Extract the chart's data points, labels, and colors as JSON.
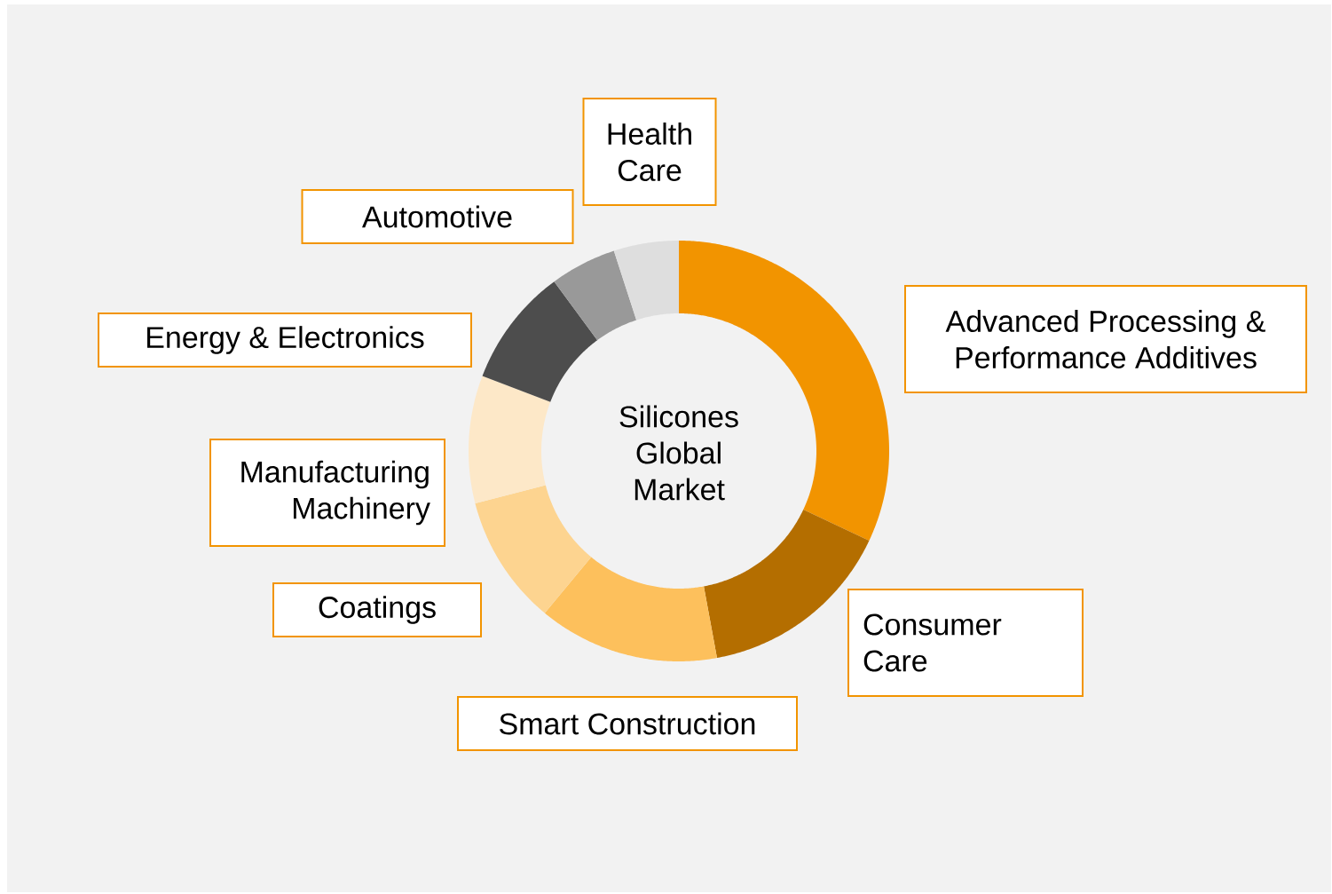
{
  "chart_data": {
    "type": "donut",
    "title": "Silicones Global Market",
    "categories": [
      "Advanced Processing & Performance Additives",
      "Consumer Care",
      "Smart Construction",
      "Coatings",
      "Manufacturing Machinery",
      "Energy & Electronics",
      "Automotive",
      "Health Care"
    ],
    "values": [
      32,
      15.1,
      13.9,
      10,
      9.8,
      9.1,
      5.1,
      5
    ],
    "colors": [
      "#f29400",
      "#b46e00",
      "#fdc05c",
      "#fdd490",
      "#fde8c8",
      "#4d4d4d",
      "#999999",
      "#dedede"
    ]
  }
}
